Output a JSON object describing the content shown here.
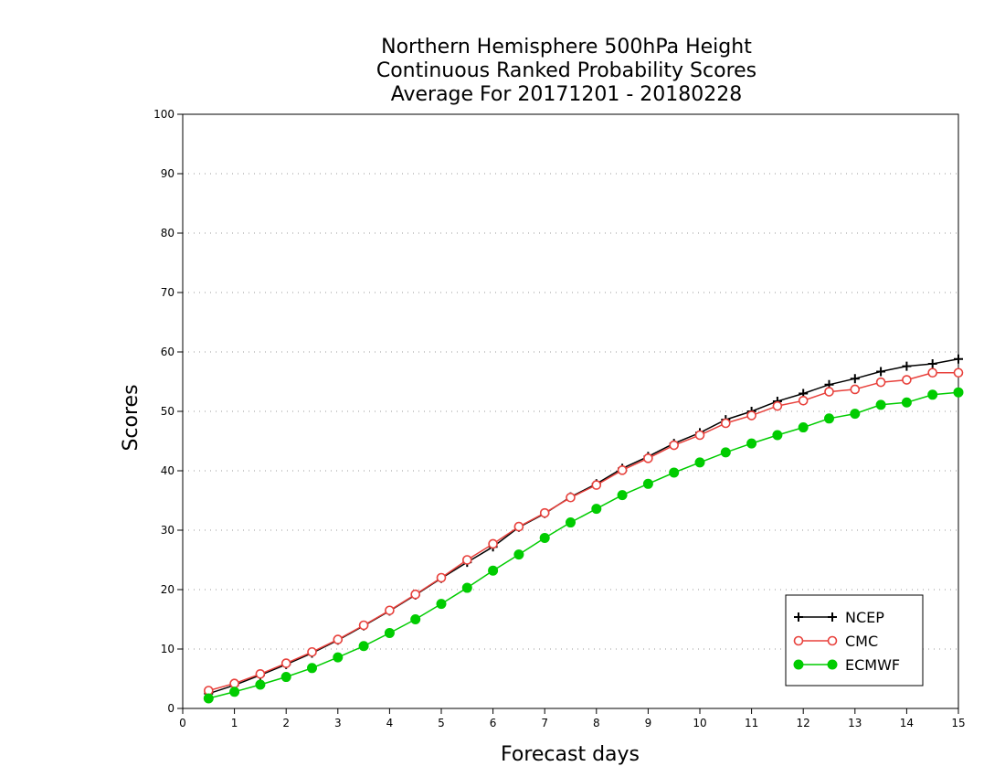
{
  "chart_data": {
    "type": "line",
    "title_lines": [
      "Northern Hemisphere 500hPa Height",
      "Continuous Ranked Probability Scores",
      "Average For 20171201 - 20180228"
    ],
    "xlabel": "Forecast days",
    "ylabel": "Scores",
    "xlim": [
      0,
      15
    ],
    "ylim": [
      0,
      100
    ],
    "xticks": [
      "0",
      "1",
      "2",
      "3",
      "4",
      "5",
      "6",
      "7",
      "8",
      "9",
      "10",
      "11",
      "12",
      "13",
      "14",
      "15"
    ],
    "yticks": [
      "0",
      "10",
      "20",
      "30",
      "40",
      "50",
      "60",
      "70",
      "80",
      "90",
      "100"
    ],
    "grid": true,
    "legend_position": "bottom-right",
    "x": [
      0.5,
      1,
      1.5,
      2,
      2.5,
      3,
      3.5,
      4,
      4.5,
      5,
      5.5,
      6,
      6.5,
      7,
      7.5,
      8,
      8.5,
      9,
      9.5,
      10,
      10.5,
      11,
      11.5,
      12,
      12.5,
      13,
      13.5,
      14,
      14.5,
      15
    ],
    "series": [
      {
        "name": "NCEP",
        "color": "#000000",
        "marker": "plus",
        "values": [
          2.5,
          3.9,
          5.6,
          7.4,
          9.3,
          11.5,
          13.9,
          16.4,
          19.1,
          21.9,
          24.6,
          27.2,
          30.5,
          32.8,
          35.6,
          37.8,
          40.4,
          42.4,
          44.6,
          46.4,
          48.6,
          50.0,
          51.7,
          53.0,
          54.5,
          55.5,
          56.7,
          57.6,
          58.0,
          58.8
        ]
      },
      {
        "name": "CMC",
        "color": "#e8413c",
        "marker": "open-circle",
        "values": [
          3.0,
          4.2,
          5.8,
          7.6,
          9.5,
          11.6,
          14.0,
          16.5,
          19.2,
          22.0,
          25.0,
          27.7,
          30.6,
          32.9,
          35.5,
          37.6,
          40.1,
          42.1,
          44.3,
          46.0,
          48.0,
          49.3,
          50.9,
          51.8,
          53.3,
          53.7,
          54.9,
          55.3,
          56.5,
          56.5
        ]
      },
      {
        "name": "ECMWF",
        "color": "#00cc00",
        "marker": "filled-circle",
        "values": [
          1.7,
          2.8,
          4.0,
          5.3,
          6.8,
          8.6,
          10.5,
          12.7,
          15.0,
          17.6,
          20.3,
          23.2,
          25.9,
          28.7,
          31.3,
          33.6,
          35.9,
          37.8,
          39.7,
          41.4,
          43.1,
          44.6,
          46.0,
          47.3,
          48.8,
          49.6,
          51.1,
          51.5,
          52.8,
          53.2
        ]
      }
    ]
  }
}
